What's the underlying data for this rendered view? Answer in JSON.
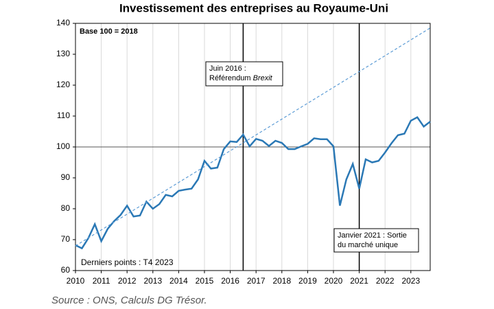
{
  "chart_data": {
    "type": "line",
    "title": "Investissement des entreprises au Royaume-Uni",
    "source": "Source : ONS, Calculs DG Trésor.",
    "notes": [
      "Base 100 = 2018",
      "Derniers points : T4 2023"
    ],
    "x": [
      2010,
      2010.25,
      2010.5,
      2010.75,
      2011,
      2011.25,
      2011.5,
      2011.75,
      2012,
      2012.25,
      2012.5,
      2012.75,
      2013,
      2013.25,
      2013.5,
      2013.75,
      2014,
      2014.25,
      2014.5,
      2014.75,
      2015,
      2015.25,
      2015.5,
      2015.75,
      2016,
      2016.25,
      2016.5,
      2016.75,
      2017,
      2017.25,
      2017.5,
      2017.75,
      2018,
      2018.25,
      2018.5,
      2018.75,
      2019,
      2019.25,
      2019.5,
      2019.75,
      2020,
      2020.25,
      2020.5,
      2020.75,
      2021,
      2021.25,
      2021.5,
      2021.75,
      2022,
      2022.25,
      2022.5,
      2022.75,
      2023,
      2023.25,
      2023.5,
      2023.75
    ],
    "series": [
      {
        "color": "#2a78b5",
        "values": [
          68.2,
          67.2,
          70.5,
          75,
          69.5,
          73.5,
          76,
          78,
          81,
          77.5,
          77.8,
          82.3,
          80,
          81.5,
          84.5,
          84,
          85.8,
          86.2,
          86.5,
          89.5,
          95.5,
          93,
          93.3,
          99.3,
          101.8,
          101.6,
          104,
          100.2,
          102.6,
          102,
          100.3,
          102,
          101.3,
          99.3,
          99.3,
          100.2,
          101,
          102.8,
          102.5,
          102.5,
          100.2,
          81,
          89.5,
          94.5,
          86.5,
          96,
          95,
          95.5,
          98.2,
          101.2,
          103.8,
          104.3,
          108.5,
          109.6,
          106.6,
          108.2
        ]
      },
      {
        "color": "#5b9bd5",
        "dashed": true,
        "x": [
          2010,
          2023.75
        ],
        "values": [
          68,
          138.5
        ]
      }
    ],
    "reference_line": 100,
    "events": [
      {
        "x": 2016.5,
        "lines": [
          "Juin 2016 :",
          "Référendum"
        ],
        "italic": "Brexit"
      },
      {
        "x": 2021,
        "lines": [
          "Janvier 2021 : Sortie",
          "du marché unique"
        ]
      }
    ],
    "xlim": [
      2010,
      2023.75
    ],
    "xticks": [
      2010,
      2011,
      2012,
      2013,
      2014,
      2015,
      2016,
      2017,
      2018,
      2019,
      2020,
      2021,
      2022,
      2023
    ],
    "ylim": [
      60,
      140
    ],
    "yticks": [
      60,
      70,
      80,
      90,
      100,
      110,
      120,
      130,
      140
    ],
    "grid": true
  }
}
